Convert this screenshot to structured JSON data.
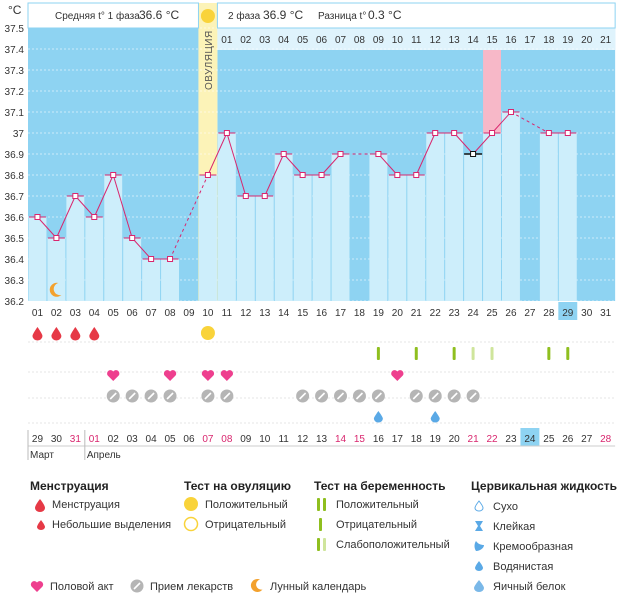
{
  "header": {
    "unit": "°C",
    "phase1_label": "Средняя t° 1 фаза",
    "phase1_value": "36.6 °C",
    "phase2_label": "2 фаза",
    "phase2_value": "36.9 °C",
    "diff_label": "Разница t°",
    "diff_value": "0.3 °C",
    "ovulation_label": "ОВУЛЯЦИЯ"
  },
  "colors": {
    "phase1": "#8ed3f2",
    "phase2": "#dff3fc",
    "bar": "#cdeefb",
    "ovulation": "#fcf3b8",
    "pink_column": "#f7b8c8",
    "line": "#d9266e",
    "drop": "#e63946",
    "heart": "#ee3f8e",
    "pill": "#b5b5b5",
    "test": "#8fbf1f",
    "test_faint": "#cfe59c",
    "moon": "#f3a12d",
    "water": "#5aa9e6",
    "sun": "#f9d33a",
    "weekend": "#d9266e"
  },
  "chart_data": {
    "type": "bar",
    "title": "Базальная температура",
    "ylabel": "°C",
    "ylim": [
      36.2,
      37.5
    ],
    "yticks": [
      "37.5",
      "37.4",
      "37.3",
      "37.2",
      "37.1",
      "37",
      "36.9",
      "36.8",
      "36.7",
      "36.6",
      "36.5",
      "36.4",
      "36.3",
      "36.2"
    ],
    "cycle_days": [
      "01",
      "02",
      "03",
      "04",
      "05",
      "06",
      "07",
      "08",
      "09",
      "10",
      "11",
      "12",
      "13",
      "14",
      "15",
      "16",
      "17",
      "18",
      "19",
      "20",
      "21",
      "22",
      "23",
      "24",
      "25",
      "26",
      "27",
      "28",
      "29",
      "30",
      "31"
    ],
    "post_ovulation_days": [
      "01",
      "02",
      "03",
      "04",
      "05",
      "06",
      "07",
      "08",
      "09",
      "10",
      "11",
      "12",
      "13",
      "14",
      "15",
      "16",
      "17",
      "18",
      "19",
      "20",
      "21"
    ],
    "temperatures": [
      36.6,
      36.5,
      36.7,
      36.6,
      36.8,
      36.5,
      36.4,
      36.4,
      null,
      36.8,
      37.0,
      36.7,
      36.7,
      36.9,
      36.8,
      36.8,
      36.9,
      null,
      36.9,
      36.8,
      36.8,
      37.0,
      37.0,
      36.9,
      37.0,
      37.1,
      null,
      37.0,
      37.0,
      null,
      null
    ],
    "marked_temperature_day": 24,
    "ovulation_day": 10,
    "pink_day": 25,
    "moon_day": 2,
    "current_day": 29,
    "menstruation_days": [
      1,
      2,
      3,
      4
    ],
    "ovulation_test_positive_days": [
      10
    ],
    "intercourse_days": [
      5,
      8,
      10,
      11,
      20
    ],
    "medication_days": [
      5,
      6,
      7,
      8,
      10,
      11,
      15,
      16,
      17,
      18,
      19,
      21,
      22,
      23,
      24
    ],
    "pregnancy_tests": [
      {
        "day": 19,
        "kind": "negative"
      },
      {
        "day": 21,
        "kind": "negative"
      },
      {
        "day": 23,
        "kind": "negative"
      },
      {
        "day": 24,
        "kind": "faint"
      },
      {
        "day": 25,
        "kind": "faint"
      },
      {
        "day": 28,
        "kind": "negative"
      },
      {
        "day": 29,
        "kind": "negative"
      }
    ],
    "cervical_days": [
      19,
      22
    ],
    "calendar_dates": [
      "29",
      "30",
      "31",
      "01",
      "02",
      "03",
      "04",
      "05",
      "06",
      "07",
      "08",
      "09",
      "10",
      "11",
      "12",
      "13",
      "14",
      "15",
      "16",
      "17",
      "18",
      "19",
      "20",
      "21",
      "22",
      "23",
      "24",
      "25",
      "26",
      "27",
      "28"
    ],
    "calendar_weekend_indices": [
      2,
      3,
      9,
      10,
      16,
      17,
      23,
      24,
      30
    ],
    "calendar_today_index": 26,
    "month_labels": [
      {
        "index": 0,
        "label": "Март"
      },
      {
        "index": 3,
        "label": "Апрель"
      }
    ]
  },
  "legend": {
    "menstruation": {
      "title": "Менструация",
      "items": [
        "Менструация",
        "Небольшие выделения"
      ]
    },
    "ovulation_test": {
      "title": "Тест на овуляцию",
      "items": [
        "Положительный",
        "Отрицательный"
      ]
    },
    "pregnancy_test": {
      "title": "Тест на беременность",
      "items": [
        "Положительный",
        "Отрицательный",
        "Слабоположительный"
      ]
    },
    "cervical": {
      "title": "Цервикальная жидкость",
      "items": [
        "Сухо",
        "Клейкая",
        "Кремообразная",
        "Водянистая",
        "Яичный белок"
      ]
    },
    "bottom": [
      "Половой акт",
      "Прием лекарств",
      "Лунный календарь"
    ]
  }
}
